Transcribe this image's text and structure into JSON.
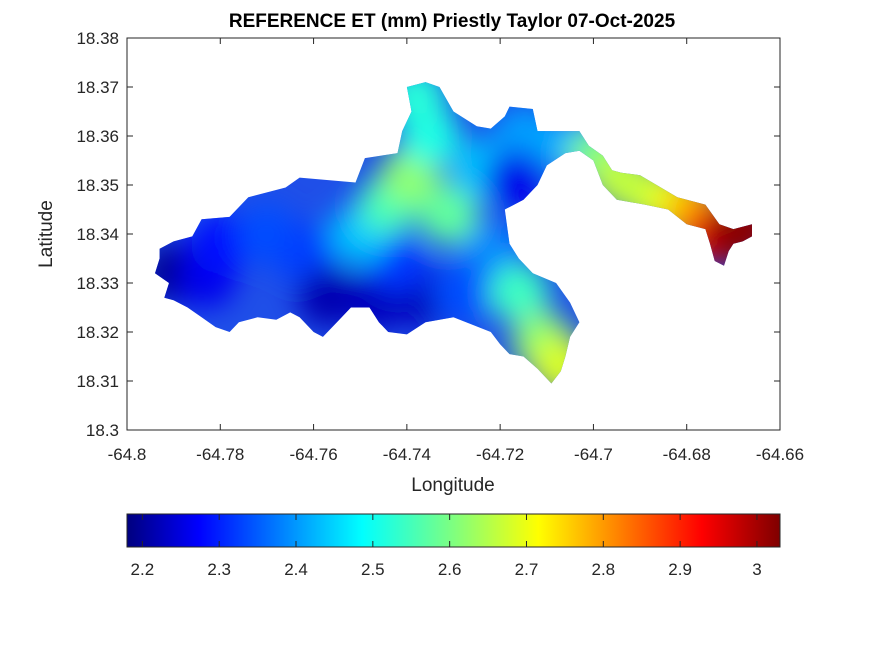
{
  "chart_data": {
    "type": "heatmap",
    "title": "REFERENCE ET (mm) Priestly Taylor 07-Oct-2025",
    "xlabel": "Longitude",
    "ylabel": "Latitude",
    "xlim": [
      -64.8,
      -64.66
    ],
    "ylim": [
      18.3,
      18.38
    ],
    "xticks": [
      -64.8,
      -64.78,
      -64.76,
      -64.74,
      -64.72,
      -64.7,
      -64.68,
      -64.66
    ],
    "xtick_labels": [
      "-64.8",
      "-64.78",
      "-64.76",
      "-64.74",
      "-64.72",
      "-64.7",
      "-64.68",
      "-64.66"
    ],
    "yticks": [
      18.3,
      18.31,
      18.32,
      18.33,
      18.34,
      18.35,
      18.36,
      18.37,
      18.38
    ],
    "ytick_labels": [
      "18.3",
      "18.31",
      "18.32",
      "18.33",
      "18.34",
      "18.35",
      "18.36",
      "18.37",
      "18.38"
    ],
    "colorbar": {
      "colormap": "jet",
      "range": [
        2.18,
        3.03
      ],
      "ticks": [
        2.2,
        2.3,
        2.4,
        2.5,
        2.6,
        2.7,
        2.8,
        2.9,
        3
      ],
      "tick_labels": [
        "2.2",
        "2.3",
        "2.4",
        "2.5",
        "2.6",
        "2.7",
        "2.8",
        "2.9",
        "3"
      ]
    },
    "grid": false,
    "outline": [
      [
        -64.793,
        18.337
      ],
      [
        -64.79,
        18.3385
      ],
      [
        -64.786,
        18.3395
      ],
      [
        -64.784,
        18.343
      ],
      [
        -64.778,
        18.3435
      ],
      [
        -64.774,
        18.3475
      ],
      [
        -64.766,
        18.3495
      ],
      [
        -64.763,
        18.3515
      ],
      [
        -64.751,
        18.3505
      ],
      [
        -64.749,
        18.3555
      ],
      [
        -64.742,
        18.3565
      ],
      [
        -64.741,
        18.361
      ],
      [
        -64.739,
        18.365
      ],
      [
        -64.74,
        18.37
      ],
      [
        -64.736,
        18.371
      ],
      [
        -64.733,
        18.37
      ],
      [
        -64.73,
        18.365
      ],
      [
        -64.725,
        18.362
      ],
      [
        -64.722,
        18.3615
      ],
      [
        -64.719,
        18.364
      ],
      [
        -64.718,
        18.366
      ],
      [
        -64.713,
        18.3655
      ],
      [
        -64.712,
        18.361
      ],
      [
        -64.703,
        18.361
      ],
      [
        -64.701,
        18.358
      ],
      [
        -64.698,
        18.356
      ],
      [
        -64.696,
        18.353
      ],
      [
        -64.694,
        18.3525
      ],
      [
        -64.69,
        18.352
      ],
      [
        -64.682,
        18.3475
      ],
      [
        -64.676,
        18.346
      ],
      [
        -64.673,
        18.342
      ],
      [
        -64.67,
        18.341
      ],
      [
        -64.666,
        18.342
      ],
      [
        -64.666,
        18.3395
      ],
      [
        -64.668,
        18.3385
      ],
      [
        -64.67,
        18.338
      ],
      [
        -64.671,
        18.3365
      ],
      [
        -64.672,
        18.3335
      ],
      [
        -64.674,
        18.3345
      ],
      [
        -64.675,
        18.338
      ],
      [
        -64.676,
        18.341
      ],
      [
        -64.68,
        18.342
      ],
      [
        -64.684,
        18.345
      ],
      [
        -64.689,
        18.346
      ],
      [
        -64.695,
        18.347
      ],
      [
        -64.698,
        18.35
      ],
      [
        -64.7,
        18.355
      ],
      [
        -64.703,
        18.357
      ],
      [
        -64.706,
        18.3565
      ],
      [
        -64.71,
        18.354
      ],
      [
        -64.712,
        18.35
      ],
      [
        -64.715,
        18.347
      ],
      [
        -64.719,
        18.345
      ],
      [
        -64.718,
        18.338
      ],
      [
        -64.716,
        18.335
      ],
      [
        -64.713,
        18.332
      ],
      [
        -64.708,
        18.33
      ],
      [
        -64.705,
        18.326
      ],
      [
        -64.703,
        18.322
      ],
      [
        -64.705,
        18.319
      ],
      [
        -64.706,
        18.315
      ],
      [
        -64.707,
        18.312
      ],
      [
        -64.709,
        18.3095
      ],
      [
        -64.712,
        18.3125
      ],
      [
        -64.715,
        18.315
      ],
      [
        -64.718,
        18.3155
      ],
      [
        -64.72,
        18.3175
      ],
      [
        -64.722,
        18.32
      ],
      [
        -64.73,
        18.323
      ],
      [
        -64.736,
        18.322
      ],
      [
        -64.74,
        18.3195
      ],
      [
        -64.744,
        18.32
      ],
      [
        -64.746,
        18.322
      ],
      [
        -64.748,
        18.325
      ],
      [
        -64.752,
        18.325
      ],
      [
        -64.755,
        18.322
      ],
      [
        -64.758,
        18.319
      ],
      [
        -64.76,
        18.32
      ],
      [
        -64.763,
        18.323
      ],
      [
        -64.765,
        18.324
      ],
      [
        -64.768,
        18.3225
      ],
      [
        -64.772,
        18.323
      ],
      [
        -64.776,
        18.322
      ],
      [
        -64.778,
        18.32
      ],
      [
        -64.781,
        18.321
      ],
      [
        -64.784,
        18.323
      ],
      [
        -64.787,
        18.325
      ],
      [
        -64.79,
        18.3265
      ],
      [
        -64.792,
        18.327
      ],
      [
        -64.791,
        18.33
      ],
      [
        -64.794,
        18.332
      ],
      [
        -64.793,
        18.335
      ]
    ],
    "value_field": [
      {
        "lon": -64.79,
        "lat": 18.332,
        "value": 2.19
      },
      {
        "lon": -64.783,
        "lat": 18.331,
        "value": 2.27
      },
      {
        "lon": -64.78,
        "lat": 18.338,
        "value": 2.3
      },
      {
        "lon": -64.77,
        "lat": 18.34,
        "value": 2.35
      },
      {
        "lon": -64.762,
        "lat": 18.336,
        "value": 2.34
      },
      {
        "lon": -64.757,
        "lat": 18.327,
        "value": 2.22
      },
      {
        "lon": -64.747,
        "lat": 18.326,
        "value": 2.23
      },
      {
        "lon": -64.737,
        "lat": 18.327,
        "value": 2.23
      },
      {
        "lon": -64.742,
        "lat": 18.334,
        "value": 2.33
      },
      {
        "lon": -64.75,
        "lat": 18.34,
        "value": 2.45
      },
      {
        "lon": -64.744,
        "lat": 18.346,
        "value": 2.56
      },
      {
        "lon": -64.739,
        "lat": 18.352,
        "value": 2.62
      },
      {
        "lon": -64.735,
        "lat": 18.36,
        "value": 2.52
      },
      {
        "lon": -64.738,
        "lat": 18.368,
        "value": 2.53
      },
      {
        "lon": -64.731,
        "lat": 18.344,
        "value": 2.58
      },
      {
        "lon": -64.724,
        "lat": 18.353,
        "value": 2.45
      },
      {
        "lon": -64.715,
        "lat": 18.36,
        "value": 2.42
      },
      {
        "lon": -64.717,
        "lat": 18.351,
        "value": 2.27
      },
      {
        "lon": -64.722,
        "lat": 18.336,
        "value": 2.4
      },
      {
        "lon": -64.728,
        "lat": 18.328,
        "value": 2.35
      },
      {
        "lon": -64.716,
        "lat": 18.328,
        "value": 2.55
      },
      {
        "lon": -64.711,
        "lat": 18.318,
        "value": 2.62
      },
      {
        "lon": -64.707,
        "lat": 18.313,
        "value": 2.68
      },
      {
        "lon": -64.705,
        "lat": 18.358,
        "value": 2.43
      },
      {
        "lon": -64.699,
        "lat": 18.356,
        "value": 2.6
      },
      {
        "lon": -64.694,
        "lat": 18.351,
        "value": 2.66
      },
      {
        "lon": -64.688,
        "lat": 18.348,
        "value": 2.66
      },
      {
        "lon": -64.682,
        "lat": 18.346,
        "value": 2.7
      },
      {
        "lon": -64.678,
        "lat": 18.344,
        "value": 2.78
      },
      {
        "lon": -64.674,
        "lat": 18.34,
        "value": 2.91
      },
      {
        "lon": -64.67,
        "lat": 18.34,
        "value": 3.02
      },
      {
        "lon": -64.667,
        "lat": 18.341,
        "value": 3.02
      }
    ]
  }
}
